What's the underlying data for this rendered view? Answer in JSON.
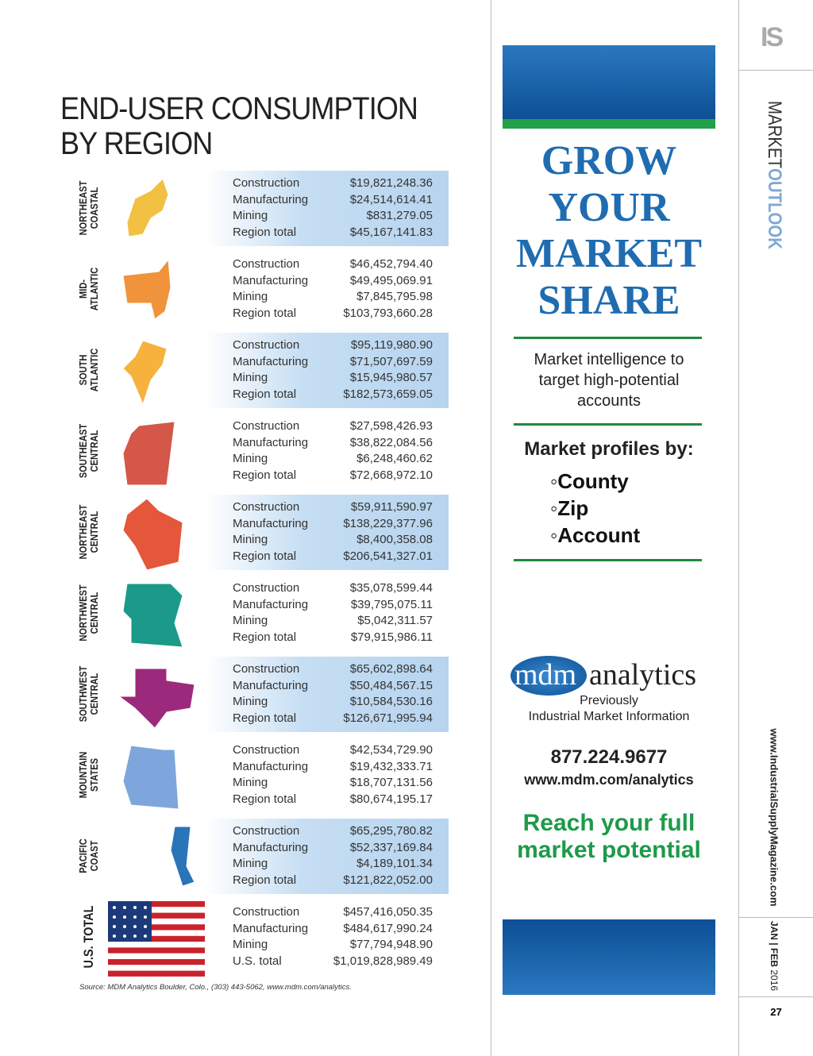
{
  "header": {
    "title": [
      "END-USER CONSUMPTION",
      "BY REGION"
    ]
  },
  "regions": [
    {
      "label": [
        "NORTHEAST",
        "COASTAL"
      ],
      "rows": [
        [
          "Construction",
          "$19,821,248.36"
        ],
        [
          "Manufacturing",
          "$24,514,614.41"
        ],
        [
          "Mining",
          "$831,279.05"
        ],
        [
          "Region total",
          "$45,167,141.83"
        ]
      ]
    },
    {
      "label": [
        "MID-",
        "ATLANTIC"
      ],
      "rows": [
        [
          "Construction",
          "$46,452,794.40"
        ],
        [
          "Manufacturing",
          "$49,495,069.91"
        ],
        [
          "Mining",
          "$7,845,795.98"
        ],
        [
          "Region total",
          "$103,793,660.28"
        ]
      ]
    },
    {
      "label": [
        "SOUTH",
        "ATLANTIC"
      ],
      "rows": [
        [
          "Construction",
          "$95,119,980.90"
        ],
        [
          "Manufacturing",
          "$71,507,697.59"
        ],
        [
          "Mining",
          "$15,945,980.57"
        ],
        [
          "Region total",
          "$182,573,659.05"
        ]
      ]
    },
    {
      "label": [
        "SOUTHEAST",
        "CENTRAL"
      ],
      "rows": [
        [
          "Construction",
          "$27,598,426.93"
        ],
        [
          "Manufacturing",
          "$38,822,084.56"
        ],
        [
          "Mining",
          "$6,248,460.62"
        ],
        [
          "Region total",
          "$72,668,972.10"
        ]
      ]
    },
    {
      "label": [
        "NORTHEAST",
        "CENTRAL"
      ],
      "rows": [
        [
          "Construction",
          "$59,911,590.97"
        ],
        [
          "Manufacturing",
          "$138,229,377.96"
        ],
        [
          "Mining",
          "$8,400,358.08"
        ],
        [
          "Region total",
          "$206,541,327.01"
        ]
      ]
    },
    {
      "label": [
        "NORTHWEST",
        "CENTRAL"
      ],
      "rows": [
        [
          "Construction",
          "$35,078,599.44"
        ],
        [
          "Manufacturing",
          "$39,795,075.11"
        ],
        [
          "Mining",
          "$5,042,311.57"
        ],
        [
          "Region total",
          "$79,915,986.11"
        ]
      ]
    },
    {
      "label": [
        "SOUTHWEST",
        "CENTRAL"
      ],
      "rows": [
        [
          "Construction",
          "$65,602,898.64"
        ],
        [
          "Manufacturing",
          "$50,484,567.15"
        ],
        [
          "Mining",
          "$10,584,530.16"
        ],
        [
          "Region total",
          "$126,671,995.94"
        ]
      ]
    },
    {
      "label": [
        "MOUNTAIN",
        "STATES"
      ],
      "rows": [
        [
          "Construction",
          "$42,534,729.90"
        ],
        [
          "Manufacturing",
          "$19,432,333.71"
        ],
        [
          "Mining",
          "$18,707,131.56"
        ],
        [
          "Region total",
          "$80,674,195.17"
        ]
      ]
    },
    {
      "label": [
        "PACIFIC",
        "COAST"
      ],
      "rows": [
        [
          "Construction",
          "$65,295,780.82"
        ],
        [
          "Manufacturing",
          "$52,337,169.84"
        ],
        [
          "Mining",
          "$4,189,101.34"
        ],
        [
          "Region total",
          "$121,822,052.00"
        ]
      ]
    },
    {
      "label": [
        "U.S. TOTAL"
      ],
      "rows": [
        [
          "Construction",
          "$457,416,050.35"
        ],
        [
          "Manufacturing",
          "$484,617,990.24"
        ],
        [
          "Mining",
          "$77,794,948.90"
        ],
        [
          "U.S. total",
          "$1,019,828,989.49"
        ]
      ]
    }
  ],
  "source": "Source: MDM Analytics Boulder, Colo., (303) 443-5062, www.mdm.com/analytics.",
  "ad": {
    "headline": [
      "GROW",
      "YOUR",
      "MARKET",
      "SHARE"
    ],
    "tagline": [
      "Market intelligence to",
      "target high-potential",
      "accounts"
    ],
    "profiles_title": "Market profiles by:",
    "profiles": [
      "◦County",
      "◦Zip",
      "◦Account"
    ],
    "logo": [
      "mdm",
      "analytics"
    ],
    "previously": [
      "Previously",
      "Industrial Market Information"
    ],
    "phone": "877.224.9677",
    "url": "www.mdm.com/analytics",
    "cta": [
      "Reach your full",
      "market potential"
    ]
  },
  "sidebar": {
    "logo": "IS",
    "section": [
      "MARKET",
      "OUTLOOK"
    ],
    "website": "www.IndustrialSupplyMagazine.com",
    "issue": [
      "JAN",
      "|",
      "FEB",
      "2016"
    ],
    "page": "27"
  }
}
